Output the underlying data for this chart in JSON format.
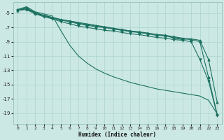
{
  "xlabel": "Humidex (Indice chaleur)",
  "ylabel": "",
  "bg_color": "#cce8e4",
  "grid_color": "#aad4cc",
  "line_color": "#1a7060",
  "xlim": [
    -0.5,
    23.5
  ],
  "ylim": [
    -20.5,
    -3.5
  ],
  "yticks": [
    -5,
    -7,
    -9,
    -11,
    -13,
    -15,
    -17,
    -19
  ],
  "xticks": [
    0,
    1,
    2,
    3,
    4,
    5,
    6,
    7,
    8,
    9,
    10,
    11,
    12,
    13,
    14,
    15,
    16,
    17,
    18,
    19,
    20,
    21,
    22,
    23
  ],
  "lines": [
    {
      "x": [
        0,
        1,
        2,
        3,
        4,
        5,
        6,
        7,
        8,
        9,
        10,
        11,
        12,
        13,
        14,
        15,
        16,
        17,
        18,
        19,
        20,
        21,
        22,
        23
      ],
      "y": [
        -4.6,
        -4.5,
        -5.1,
        -5.5,
        -5.8,
        -6.2,
        -6.5,
        -6.8,
        -7.0,
        -7.2,
        -7.4,
        -7.5,
        -7.7,
        -7.9,
        -8.0,
        -8.2,
        -8.4,
        -8.5,
        -8.7,
        -8.8,
        -9.0,
        -11.5,
        -14.5,
        -19.3
      ],
      "marker": "v",
      "markersize": 2.5
    },
    {
      "x": [
        0,
        1,
        2,
        3,
        4,
        5,
        6,
        7,
        8,
        9,
        10,
        11,
        12,
        13,
        14,
        15,
        16,
        17,
        18,
        19,
        20,
        21,
        22,
        23
      ],
      "y": [
        -4.6,
        -4.4,
        -5.0,
        -5.3,
        -5.6,
        -5.9,
        -6.1,
        -6.4,
        -6.6,
        -6.8,
        -7.0,
        -7.2,
        -7.3,
        -7.5,
        -7.7,
        -7.8,
        -8.0,
        -8.1,
        -8.3,
        -8.5,
        -8.6,
        -8.8,
        -11.5,
        -17.5
      ],
      "marker": "^",
      "markersize": 2.5
    },
    {
      "x": [
        0,
        1,
        2,
        3,
        4,
        5,
        6,
        7,
        8,
        9,
        10,
        11,
        12,
        13,
        14,
        15,
        16,
        17,
        18,
        19
      ],
      "y": [
        -4.6,
        -4.3,
        -4.9,
        -5.3,
        -5.6,
        -5.9,
        -6.1,
        -6.3,
        -6.5,
        -6.7,
        -6.9,
        -7.1,
        -7.3,
        -7.5,
        -7.6,
        -7.8,
        -8.0,
        -8.1,
        -8.5,
        -8.7
      ],
      "marker": null,
      "markersize": 0
    },
    {
      "x": [
        0,
        1,
        2,
        3,
        4,
        5,
        6,
        7,
        8,
        9,
        10,
        11,
        12,
        13,
        14,
        15,
        16,
        17,
        18,
        19,
        20,
        21,
        22,
        23
      ],
      "y": [
        -4.5,
        -4.2,
        -5.0,
        -5.4,
        -5.7,
        -6.0,
        -6.2,
        -6.5,
        -6.7,
        -6.9,
        -7.0,
        -7.2,
        -7.4,
        -7.6,
        -7.7,
        -7.9,
        -8.1,
        -8.2,
        -8.4,
        -8.6,
        -8.7,
        -9.0,
        -14.0,
        -19.2
      ],
      "marker": "D",
      "markersize": 2.0
    },
    {
      "x": [
        0,
        1,
        2,
        3,
        4,
        5,
        6,
        7,
        8,
        9,
        10,
        11,
        12,
        13,
        14,
        15,
        16,
        17,
        18,
        19,
        20,
        21,
        22,
        23
      ],
      "y": [
        -4.5,
        -4.1,
        -4.8,
        -5.1,
        -5.4,
        -7.5,
        -9.5,
        -11.0,
        -12.0,
        -12.8,
        -13.4,
        -13.9,
        -14.3,
        -14.7,
        -15.0,
        -15.3,
        -15.6,
        -15.8,
        -16.0,
        -16.2,
        -16.4,
        -16.6,
        -17.2,
        -19.1
      ],
      "marker": null,
      "markersize": 0
    }
  ]
}
